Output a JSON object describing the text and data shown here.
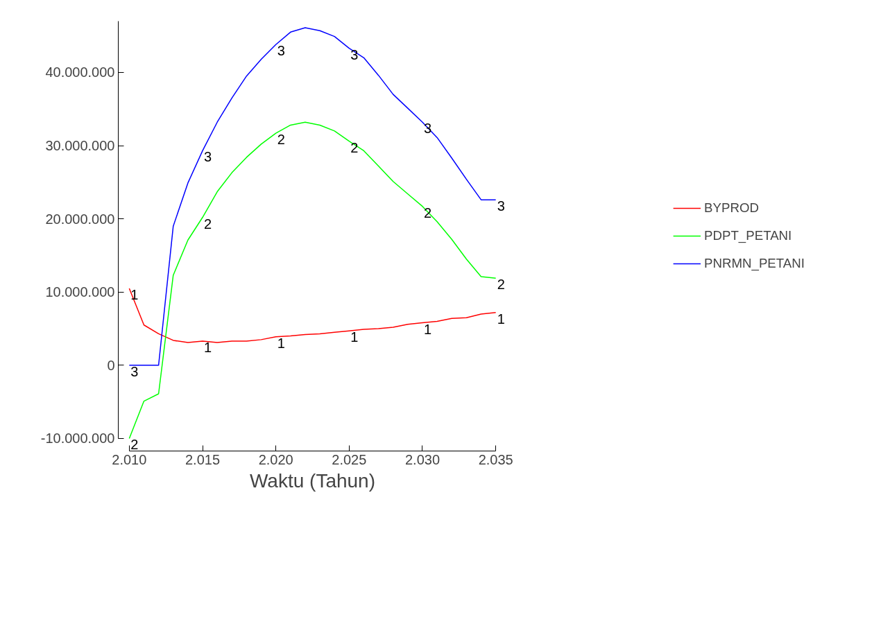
{
  "chart_data": {
    "type": "line",
    "xlabel": "Waktu (Tahun)",
    "x": [
      2010,
      2011,
      2012,
      2013,
      2014,
      2015,
      2016,
      2017,
      2018,
      2019,
      2020,
      2021,
      2022,
      2023,
      2024,
      2025,
      2026,
      2027,
      2028,
      2029,
      2030,
      2031,
      2032,
      2033,
      2034,
      2035
    ],
    "series": [
      {
        "name": "BYPROD",
        "color": "#ff0000",
        "values": [
          10500000,
          5500000,
          4300000,
          3400000,
          3100000,
          3300000,
          3100000,
          3300000,
          3300000,
          3500000,
          3900000,
          4000000,
          4200000,
          4300000,
          4500000,
          4700000,
          4900000,
          5000000,
          5200000,
          5600000,
          5800000,
          6000000,
          6400000,
          6500000,
          7000000,
          7200000
        ]
      },
      {
        "name": "PDPT_PETANI",
        "color": "#00ff00",
        "values": [
          -10000000,
          -4900000,
          -3900000,
          12300000,
          17100000,
          20200000,
          23700000,
          26300000,
          28400000,
          30200000,
          31700000,
          32800000,
          33200000,
          32800000,
          32000000,
          30600000,
          29300000,
          27200000,
          25100000,
          23400000,
          21700000,
          19600000,
          17200000,
          14500000,
          12100000,
          11900000
        ]
      },
      {
        "name": "PNRMN_PETANI",
        "color": "#0000ff",
        "values": [
          0,
          0,
          0,
          19000000,
          24900000,
          29300000,
          33200000,
          36500000,
          39500000,
          41800000,
          43800000,
          45500000,
          46100000,
          45700000,
          44900000,
          43300000,
          42000000,
          39600000,
          37000000,
          35100000,
          33200000,
          31100000,
          28300000,
          25400000,
          22600000,
          22600000
        ]
      }
    ],
    "annotations": [
      {
        "text": "1",
        "x": 2010,
        "y": 10500000
      },
      {
        "text": "1",
        "x": 2015,
        "y": 3300000
      },
      {
        "text": "1",
        "x": 2020,
        "y": 3900000
      },
      {
        "text": "1",
        "x": 2025,
        "y": 4700000
      },
      {
        "text": "1",
        "x": 2030,
        "y": 5800000
      },
      {
        "text": "1",
        "x": 2035,
        "y": 7200000
      },
      {
        "text": "2",
        "x": 2010,
        "y": -10000000
      },
      {
        "text": "2",
        "x": 2015,
        "y": 20200000
      },
      {
        "text": "2",
        "x": 2020,
        "y": 31700000
      },
      {
        "text": "2",
        "x": 2025,
        "y": 30600000
      },
      {
        "text": "2",
        "x": 2030,
        "y": 21700000
      },
      {
        "text": "2",
        "x": 2035,
        "y": 11900000
      },
      {
        "text": "3",
        "x": 2010,
        "y": 0
      },
      {
        "text": "3",
        "x": 2015,
        "y": 29300000
      },
      {
        "text": "3",
        "x": 2020,
        "y": 43800000
      },
      {
        "text": "3",
        "x": 2025,
        "y": 43300000
      },
      {
        "text": "3",
        "x": 2030,
        "y": 33200000
      },
      {
        "text": "3",
        "x": 2035,
        "y": 22600000
      }
    ],
    "xlim": [
      2010,
      2035
    ],
    "xticks": [
      {
        "value": 2010,
        "label": "2.010"
      },
      {
        "value": 2015,
        "label": "2.015"
      },
      {
        "value": 2020,
        "label": "2.020"
      },
      {
        "value": 2025,
        "label": "2.025"
      },
      {
        "value": 2030,
        "label": "2.030"
      },
      {
        "value": 2035,
        "label": "2.035"
      }
    ],
    "ylim": [
      -10000000,
      47000000
    ],
    "yticks": [
      {
        "value": -10000000,
        "label": "-10.000.000"
      },
      {
        "value": 0,
        "label": "0"
      },
      {
        "value": 10000000,
        "label": "10.000.000"
      },
      {
        "value": 20000000,
        "label": "20.000.000"
      },
      {
        "value": 30000000,
        "label": "30.000.000"
      },
      {
        "value": 40000000,
        "label": "40.000.000"
      }
    ],
    "grid": false,
    "legend": "right",
    "marker": "none",
    "line_style": "solid"
  }
}
